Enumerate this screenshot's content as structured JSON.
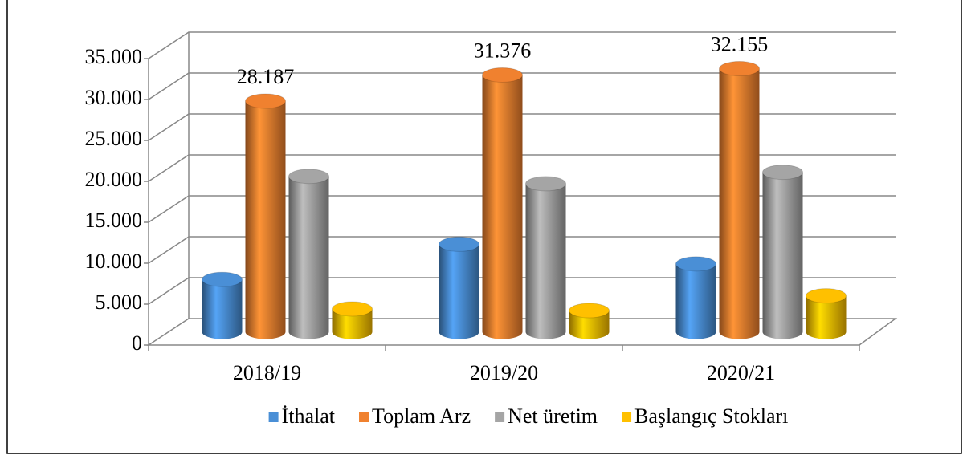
{
  "chart_data": {
    "type": "bar3d",
    "categories": [
      "2018/19",
      "2019/20",
      "2020/21"
    ],
    "series": [
      {
        "name": "İthalat",
        "color": "#4a8fd6",
        "values": [
          6400,
          10700,
          8300
        ]
      },
      {
        "name": "Toplam Arz",
        "color": "#f0812f",
        "values": [
          28187,
          31376,
          32155
        ],
        "value_labels": [
          "28.187",
          "31.376",
          "32.155"
        ]
      },
      {
        "name": "Net üretim",
        "color": "#a5a5a5",
        "values": [
          19000,
          18100,
          19500
        ]
      },
      {
        "name": "Başlangıç Stokları",
        "color": "#ffc000",
        "values": [
          2800,
          2600,
          4400
        ]
      }
    ],
    "ylim": [
      0,
      35000
    ],
    "yticks": [
      0,
      {
        "value": 5000,
        "label": "5.000"
      },
      {
        "value": 10000,
        "label": "10.000"
      },
      {
        "value": 15000,
        "label": "15.000"
      },
      {
        "value": 20000,
        "label": "20.000"
      },
      {
        "value": 25000,
        "label": "25.000"
      },
      {
        "value": 30000,
        "label": "30.000"
      },
      {
        "value": 35000,
        "label": "35.000"
      }
    ],
    "grid": true,
    "legend": "bottom"
  }
}
